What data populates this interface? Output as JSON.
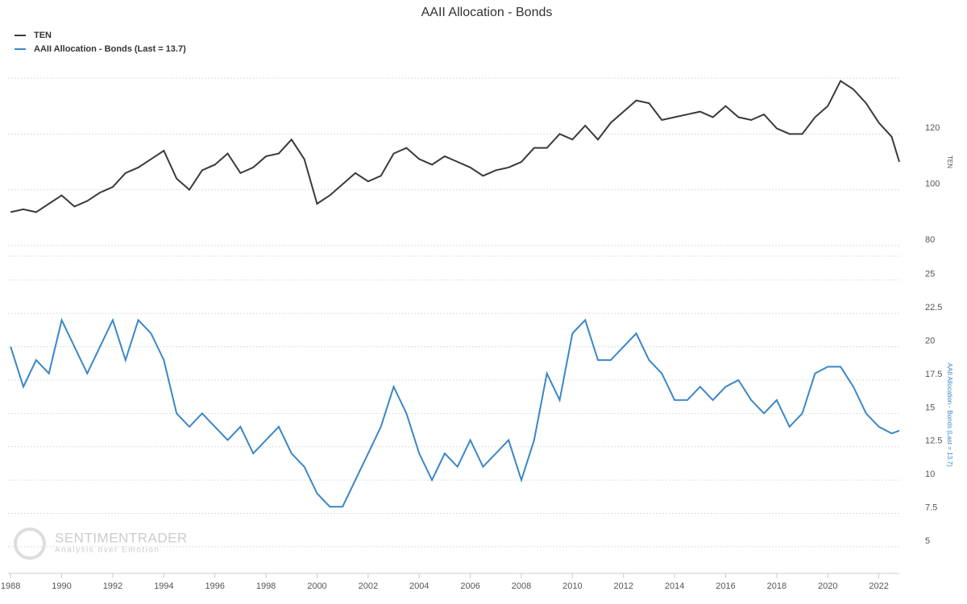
{
  "chart_data": {
    "type": "line",
    "title": "AAII Allocation - Bonds",
    "ylabel": "TEN",
    "y2label": "AAII Allocation - Bonds (Last = 13.7)",
    "watermark": "SENTIMENTRADER",
    "watermark_sub": "Analysis over Emotion",
    "legend": "top-left",
    "grid": true,
    "x": [
      1988,
      1988.5,
      1989,
      1989.5,
      1990,
      1990.5,
      1991,
      1991.5,
      1992,
      1992.5,
      1993,
      1993.5,
      1994,
      1994.5,
      1995,
      1995.5,
      1996,
      1996.5,
      1997,
      1997.5,
      1998,
      1998.5,
      1999,
      1999.5,
      2000,
      2000.5,
      2001,
      2001.5,
      2002,
      2002.5,
      2003,
      2003.5,
      2004,
      2004.5,
      2005,
      2005.5,
      2006,
      2006.5,
      2007,
      2007.5,
      2008,
      2008.5,
      2009,
      2009.5,
      2010,
      2010.5,
      2011,
      2011.5,
      2012,
      2012.5,
      2013,
      2013.5,
      2014,
      2014.5,
      2015,
      2015.5,
      2016,
      2016.5,
      2017,
      2017.5,
      2018,
      2018.5,
      2019,
      2019.5,
      2020,
      2020.5,
      2021,
      2021.5,
      2022,
      2022.5,
      2022.8
    ],
    "xlim": [
      1987.9,
      2022.8
    ],
    "xticks": [
      1988,
      1990,
      1992,
      1994,
      1996,
      1998,
      2000,
      2002,
      2004,
      2006,
      2008,
      2010,
      2012,
      2014,
      2016,
      2018,
      2020,
      2022
    ],
    "ylim": [
      80,
      140
    ],
    "yticks": [
      80,
      100,
      120
    ],
    "y2lim": [
      3,
      26.8
    ],
    "y2ticks": [
      5,
      7.5,
      10,
      12.5,
      15,
      17.5,
      20,
      22.5,
      25
    ],
    "series": [
      {
        "name": "TEN",
        "color": "#3a3a3a",
        "values": [
          92,
          93,
          92,
          95,
          98,
          94,
          96,
          99,
          101,
          106,
          108,
          111,
          114,
          104,
          100,
          107,
          109,
          113,
          106,
          108,
          112,
          113,
          118,
          111,
          95,
          98,
          102,
          106,
          103,
          105,
          113,
          115,
          111,
          109,
          112,
          110,
          108,
          105,
          107,
          108,
          110,
          115,
          115,
          120,
          118,
          123,
          118,
          124,
          128,
          132,
          131,
          125,
          126,
          127,
          128,
          126,
          130,
          126,
          125,
          127,
          122,
          120,
          120,
          126,
          130,
          139,
          136,
          131,
          124,
          119,
          110
        ]
      },
      {
        "name": "AAII Allocation - Bonds (Last = 13.7)",
        "color": "#3a87c8",
        "axis": "y2",
        "values": [
          20,
          17,
          19,
          18,
          22,
          20,
          18,
          20,
          22,
          19,
          22,
          21,
          19,
          15,
          14,
          15,
          14,
          13,
          14,
          12,
          13,
          14,
          12,
          11,
          9,
          8,
          8,
          10,
          12,
          14,
          17,
          15,
          12,
          10,
          12,
          11,
          13,
          11,
          12,
          13,
          10,
          13,
          18,
          16,
          21,
          22,
          19,
          19,
          20,
          21,
          19,
          18,
          16,
          16,
          17,
          16,
          17,
          17.5,
          16,
          15,
          16,
          14,
          15,
          18,
          18.5,
          18.5,
          17,
          15,
          14,
          13.5,
          13.7
        ]
      }
    ]
  }
}
